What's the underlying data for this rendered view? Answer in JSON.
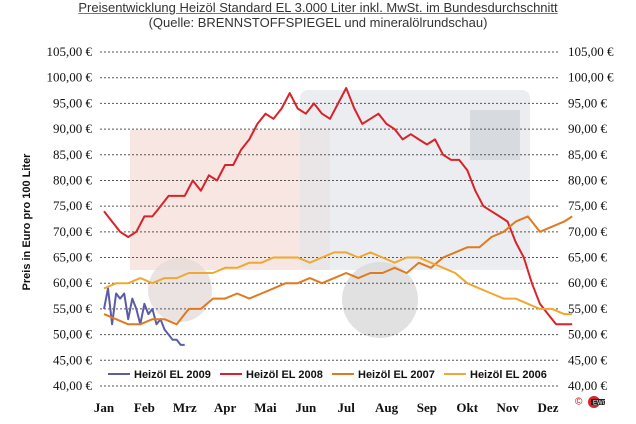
{
  "header": {
    "title": "Preisentwicklung Heizöl Standard EL 3.000 Liter inkl. MwSt. im Bundesdurchschnitt",
    "subtitle": "(Quelle: BRENNSTOFFSPIEGEL und mineralölrundschau)"
  },
  "logo": {
    "text": "©",
    "icon": "company-logo-icon"
  },
  "colors": {
    "s2009": "#5b5ba8",
    "s2008": "#d8232a",
    "s2007": "#e07a20",
    "s2006": "#f0a830",
    "grid": "#555555"
  },
  "chart_data": {
    "type": "line",
    "ylabel": "Preis in Euro pro 100 Liter",
    "xlabel": "",
    "ylim": [
      40,
      105
    ],
    "y_ticks": [
      "40,00 €",
      "45,00 €",
      "50,00 €",
      "55,00 €",
      "60,00 €",
      "65,00 €",
      "70,00 €",
      "75,00 €",
      "80,00 €",
      "85,00 €",
      "90,00 €",
      "95,00 €",
      "100,00 €",
      "105,00 €"
    ],
    "months": [
      "Jan",
      "Feb",
      "Mrz",
      "Apr",
      "Mai",
      "Jun",
      "Jul",
      "Aug",
      "Sep",
      "Okt",
      "Nov",
      "Dez"
    ],
    "grid": true,
    "legend_position": "bottom",
    "series": [
      {
        "name": "Heizöl EL 2009",
        "color_key": "s2009",
        "x": [
          0.0,
          0.1,
          0.2,
          0.3,
          0.4,
          0.5,
          0.6,
          0.7,
          0.8,
          0.9,
          1.0,
          1.1,
          1.2,
          1.3,
          1.4,
          1.5,
          1.6,
          1.7,
          1.8,
          1.9,
          2.0
        ],
        "y": [
          55,
          59,
          52,
          58,
          57,
          58,
          53,
          57,
          55,
          52,
          56,
          54,
          55,
          52,
          53,
          51,
          50,
          49,
          49,
          48,
          48
        ]
      },
      {
        "name": "Heizöl EL 2008",
        "color_key": "s2008",
        "x": [
          0.0,
          0.2,
          0.4,
          0.6,
          0.8,
          1.0,
          1.2,
          1.4,
          1.6,
          1.8,
          2.0,
          2.2,
          2.4,
          2.6,
          2.8,
          3.0,
          3.2,
          3.4,
          3.6,
          3.8,
          4.0,
          4.2,
          4.4,
          4.6,
          4.8,
          5.0,
          5.2,
          5.4,
          5.6,
          5.8,
          6.0,
          6.2,
          6.4,
          6.6,
          6.8,
          7.0,
          7.2,
          7.4,
          7.6,
          7.8,
          8.0,
          8.2,
          8.4,
          8.6,
          8.8,
          9.0,
          9.2,
          9.4,
          9.6,
          9.8,
          10.0,
          10.2,
          10.4,
          10.6,
          10.8,
          11.0,
          11.2,
          11.4,
          11.6
        ],
        "y": [
          74,
          72,
          70,
          69,
          70,
          73,
          73,
          75,
          77,
          77,
          77,
          80,
          78,
          81,
          80,
          83,
          83,
          86,
          88,
          91,
          93,
          92,
          94,
          97,
          94,
          93,
          95,
          93,
          92,
          95,
          98,
          94,
          91,
          92,
          93,
          91,
          90,
          88,
          89,
          88,
          87,
          88,
          85,
          84,
          84,
          82,
          78,
          75,
          74,
          73,
          72,
          68,
          65,
          60,
          56,
          54,
          52,
          52,
          52
        ]
      },
      {
        "name": "Heizöl EL 2007",
        "color_key": "s2007",
        "x": [
          0.0,
          0.3,
          0.6,
          0.9,
          1.2,
          1.5,
          1.8,
          2.1,
          2.4,
          2.7,
          3.0,
          3.3,
          3.6,
          3.9,
          4.2,
          4.5,
          4.8,
          5.1,
          5.4,
          5.7,
          6.0,
          6.3,
          6.6,
          6.9,
          7.2,
          7.5,
          7.8,
          8.1,
          8.4,
          8.7,
          9.0,
          9.3,
          9.6,
          9.9,
          10.2,
          10.5,
          10.8,
          11.1,
          11.4,
          11.6
        ],
        "y": [
          54,
          53,
          52,
          52,
          53,
          53,
          52,
          55,
          55,
          57,
          57,
          58,
          57,
          58,
          59,
          60,
          60,
          61,
          60,
          61,
          62,
          61,
          62,
          62,
          63,
          62,
          64,
          63,
          65,
          66,
          67,
          67,
          69,
          70,
          72,
          73,
          70,
          71,
          72,
          73
        ]
      },
      {
        "name": "Heizöl EL 2006",
        "color_key": "s2006",
        "x": [
          0.0,
          0.3,
          0.6,
          0.9,
          1.2,
          1.5,
          1.8,
          2.1,
          2.4,
          2.7,
          3.0,
          3.3,
          3.6,
          3.9,
          4.2,
          4.5,
          4.8,
          5.1,
          5.4,
          5.7,
          6.0,
          6.3,
          6.6,
          6.9,
          7.2,
          7.5,
          7.8,
          8.1,
          8.4,
          8.7,
          9.0,
          9.3,
          9.6,
          9.9,
          10.2,
          10.5,
          10.8,
          11.1,
          11.4,
          11.6
        ],
        "y": [
          59,
          60,
          60,
          61,
          60,
          61,
          61,
          62,
          62,
          62,
          63,
          63,
          64,
          64,
          65,
          65,
          65,
          64,
          65,
          66,
          66,
          65,
          66,
          65,
          64,
          65,
          65,
          64,
          63,
          62,
          60,
          59,
          58,
          57,
          57,
          56,
          55,
          55,
          54,
          54
        ]
      }
    ]
  }
}
